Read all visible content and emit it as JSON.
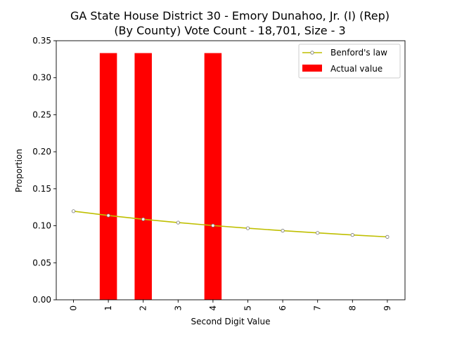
{
  "chart_data": {
    "type": "bar",
    "title_lines": [
      "GA State House District 30 - Emory Dunahoo, Jr. (I) (Rep)",
      "(By County) Vote Count - 18,701, Size - 3"
    ],
    "xlabel": "Second Digit Value",
    "ylabel": "Proportion",
    "categories": [
      "0",
      "1",
      "2",
      "3",
      "4",
      "5",
      "6",
      "7",
      "8",
      "9"
    ],
    "ylim": [
      0,
      0.35
    ],
    "yticks": [
      "0.00",
      "0.05",
      "0.10",
      "0.15",
      "0.20",
      "0.25",
      "0.30",
      "0.35"
    ],
    "grid": false,
    "legend_position": "top-right",
    "series": [
      {
        "name": "Benford's law",
        "type": "line",
        "color": "#bfbf00",
        "marker": "circle",
        "values": [
          0.1197,
          0.1139,
          0.1088,
          0.1043,
          0.1003,
          0.0967,
          0.0934,
          0.0904,
          0.0876,
          0.085
        ]
      },
      {
        "name": "Actual value",
        "type": "bar",
        "color": "#ff0000",
        "values": [
          0,
          0.3333,
          0.3333,
          0,
          0.3333,
          0,
          0,
          0,
          0,
          0
        ]
      }
    ]
  }
}
